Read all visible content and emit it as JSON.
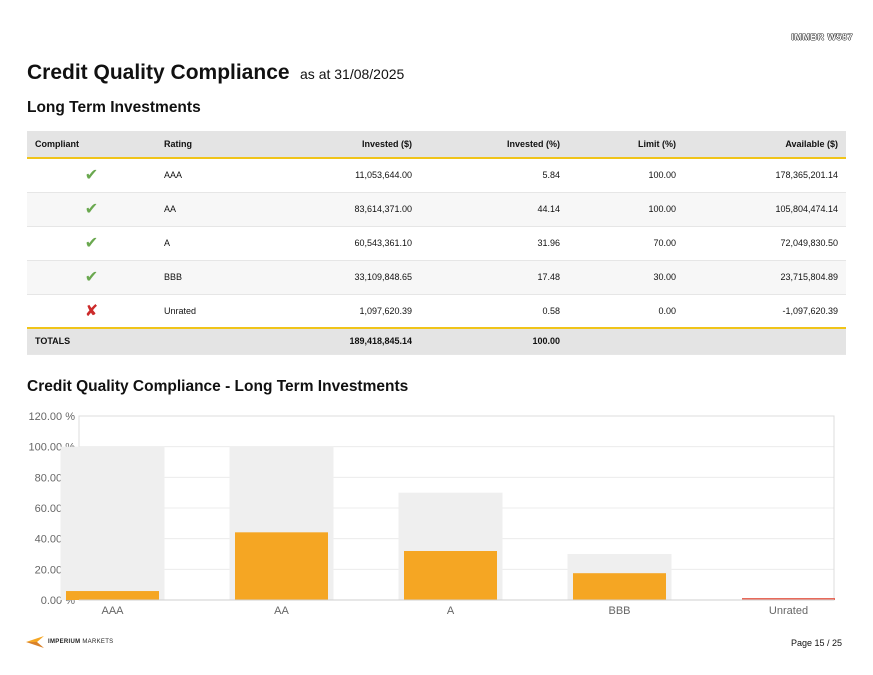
{
  "header_code": "IMMBR W587",
  "title": "Credit Quality Compliance",
  "subtitle": "as at 31/08/2025",
  "section_title": "Long Term Investments",
  "table": {
    "columns": [
      "Compliant",
      "Rating",
      "Invested ($)",
      "Invested (%)",
      "Limit (%)",
      "Available ($)"
    ],
    "rows": [
      {
        "compliant": "✔",
        "status": "compliant",
        "rating": "AAA",
        "invested": "11,053,644.00",
        "invested_pct": "5.84",
        "limit": "100.00",
        "available": "178,365,201.14"
      },
      {
        "compliant": "✔",
        "status": "compliant",
        "rating": "AA",
        "invested": "83,614,371.00",
        "invested_pct": "44.14",
        "limit": "100.00",
        "available": "105,804,474.14"
      },
      {
        "compliant": "✔",
        "status": "compliant",
        "rating": "A",
        "invested": "60,543,361.10",
        "invested_pct": "31.96",
        "limit": "70.00",
        "available": "72,049,830.50"
      },
      {
        "compliant": "✔",
        "status": "compliant",
        "rating": "BBB",
        "invested": "33,109,848.65",
        "invested_pct": "17.48",
        "limit": "30.00",
        "available": "23,715,804.89"
      },
      {
        "compliant": "✘",
        "status": "non-compliant",
        "rating": "Unrated",
        "invested": "1,097,620.39",
        "invested_pct": "0.58",
        "limit": "0.00",
        "available": "-1,097,620.39"
      }
    ],
    "totals": {
      "label": "TOTALS",
      "invested": "189,418,845.14",
      "invested_pct": "100.00"
    }
  },
  "chart_title": "Credit Quality Compliance - Long Term Investments",
  "chart_data": {
    "type": "bar",
    "title": "Credit Quality Compliance - Long Term Investments",
    "categories": [
      "AAA",
      "AA",
      "A",
      "BBB",
      "Unrated"
    ],
    "series": [
      {
        "values": [
          100,
          100,
          70,
          30,
          0
        ],
        "color": "#efefef"
      },
      {
        "values": [
          5.84,
          44.14,
          31.96,
          17.48,
          0.58
        ],
        "colors": [
          "#f5a623",
          "#f5a623",
          "#f5a623",
          "#f5a623",
          "#e8695a"
        ]
      }
    ],
    "ylim": [
      0,
      120
    ],
    "yticks": [
      0,
      20,
      40,
      60,
      80,
      100,
      120
    ],
    "ytick_labels": [
      "0.00 %",
      "20.00 %",
      "40.00 %",
      "60.00 %",
      "80.00 %",
      "100.00 %",
      "120.00 %"
    ],
    "grid": true,
    "xlabel": "",
    "ylabel": ""
  },
  "footer": {
    "logo_bold": "IMPERIUM",
    "logo_light": "MARKETS",
    "page": "Page 15 / 25"
  },
  "colors": {
    "accent": "#f0c419",
    "bar": "#f5a623",
    "limit": "#efefef",
    "breach": "#e8695a",
    "tick": "#6aa84f",
    "cross": "#cc2b2b"
  }
}
